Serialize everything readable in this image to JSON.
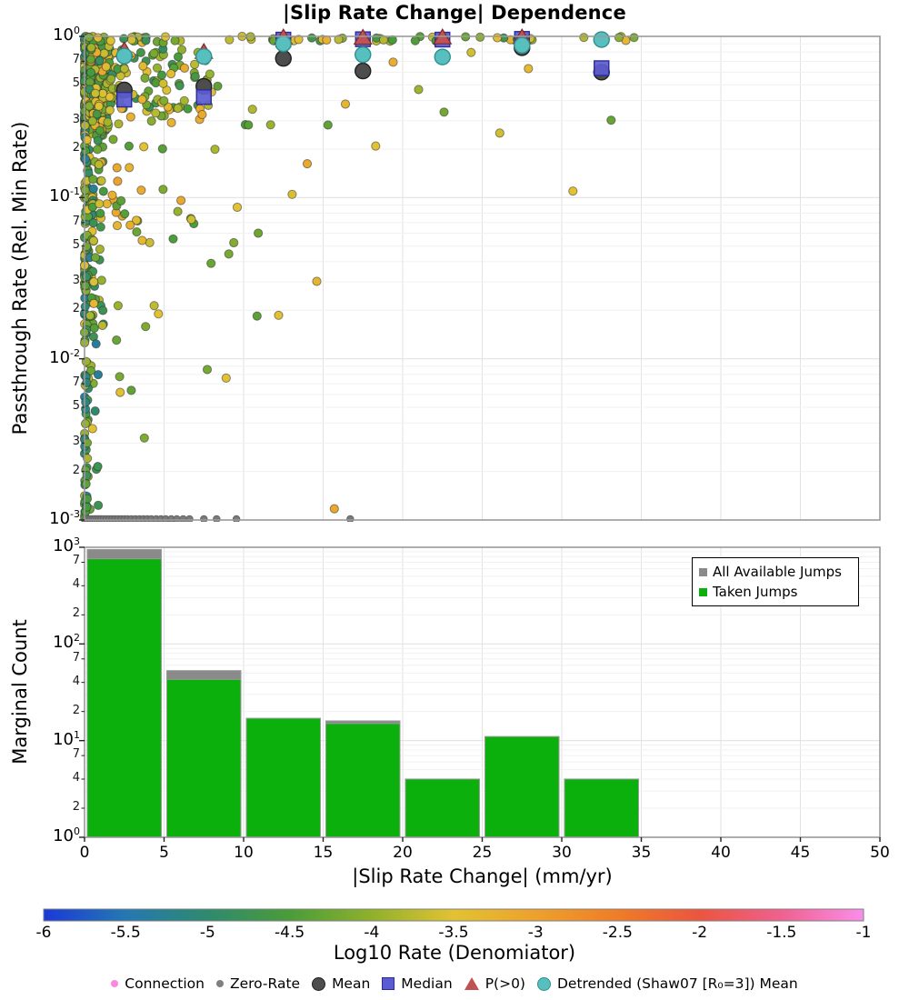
{
  "title": "|Slip Rate Change| Dependence",
  "scatter_plot": {
    "ylabel": "Passthrough Rate (Rel. Min Rate)",
    "y_major_exponents": [
      0,
      -1,
      -2,
      -3
    ],
    "y_minor_labels": [
      7,
      5,
      3,
      2
    ],
    "ylim_log": [
      -3,
      0
    ],
    "xlim": [
      0,
      50
    ]
  },
  "hist_plot": {
    "ylabel": "Marginal Count",
    "xlabel": "|Slip Rate Change| (mm/yr)",
    "y_major_exponents": [
      3,
      2,
      1,
      0
    ],
    "y_minor_labels": [
      7,
      4,
      2
    ],
    "ylim_log": [
      0,
      3
    ],
    "x_ticks": [
      0,
      5,
      10,
      15,
      20,
      25,
      30,
      35,
      40,
      45,
      50
    ],
    "legend": {
      "items": [
        {
          "label": "All Available Jumps",
          "color": "#8a8a8a"
        },
        {
          "label": "Taken Jumps",
          "color": "#0cb00c"
        }
      ]
    }
  },
  "colorbar": {
    "label": "Log10 Rate (Denomiator)",
    "ticks": [
      "-6",
      "-5.5",
      "-5",
      "-4.5",
      "-4",
      "-3.5",
      "-3",
      "-2.5",
      "-2",
      "-1.5",
      "-1"
    ],
    "range": [
      -6,
      -1
    ],
    "stops": [
      {
        "v": -6.0,
        "c": "#1b39d8"
      },
      {
        "v": -5.5,
        "c": "#2478b2"
      },
      {
        "v": -5.0,
        "c": "#2e8a6e"
      },
      {
        "v": -4.5,
        "c": "#4a9c39"
      },
      {
        "v": -4.0,
        "c": "#8fb12c"
      },
      {
        "v": -3.5,
        "c": "#e2c232"
      },
      {
        "v": -3.0,
        "c": "#eda12d"
      },
      {
        "v": -2.5,
        "c": "#ee7d27"
      },
      {
        "v": -2.0,
        "c": "#eb5540"
      },
      {
        "v": -1.5,
        "c": "#ef618f"
      },
      {
        "v": -1.0,
        "c": "#fa8ee9"
      }
    ]
  },
  "bottom_legend": {
    "items": [
      {
        "label": "Connection",
        "marker": "dot",
        "color": "#ff87dd",
        "edge": "#e06ec0"
      },
      {
        "label": "Zero-Rate",
        "marker": "dot",
        "color": "#7f7f7f",
        "edge": "#6a6a6a"
      },
      {
        "label": "Mean",
        "marker": "circle",
        "color": "#4d4d4d",
        "edge": "#1f1f1f"
      },
      {
        "label": "Median",
        "marker": "square",
        "color": "#5c5cd2",
        "edge": "#2b2b99"
      },
      {
        "label": "P(>0)",
        "marker": "triangle",
        "color": "#bf5252",
        "edge": "#7e2a2a"
      },
      {
        "label": "Detrended (Shaw07 [R₀=3]) Mean",
        "marker": "circle",
        "color": "#58bfbf",
        "edge": "#2e8f8f"
      }
    ]
  },
  "chart_data": [
    {
      "type": "scatter",
      "title": "|Slip Rate Change| Dependence",
      "xlabel": "|Slip Rate Change| (mm/yr)",
      "ylabel": "Passthrough Rate (Rel. Min Rate)",
      "x_range": [
        0,
        50
      ],
      "y_log_range": [
        -3,
        0
      ],
      "grid": true,
      "color_axis": {
        "label": "Log10 Rate (Denomiator)",
        "range": [
          -6,
          -1
        ]
      },
      "series": [
        {
          "name": "Mean",
          "marker": "circle",
          "color": "#4d4d4d",
          "edge": "#1f1f1f",
          "points": [
            [
              2.5,
              0.465
            ],
            [
              7.5,
              0.49
            ],
            [
              12.5,
              0.73
            ],
            [
              17.5,
              0.61
            ],
            [
              27.5,
              0.85
            ],
            [
              32.5,
              0.6
            ]
          ]
        },
        {
          "name": "Median",
          "marker": "square",
          "color": "#5c5cd2",
          "edge": "#2b2b99",
          "points": [
            [
              2.5,
              0.405
            ],
            [
              7.5,
              0.42
            ],
            [
              12.5,
              0.955
            ],
            [
              17.5,
              0.96
            ],
            [
              22.5,
              0.955
            ],
            [
              27.5,
              0.965
            ],
            [
              32.5,
              0.635
            ]
          ]
        },
        {
          "name": "P(>0)",
          "marker": "triangle",
          "color": "#bf5252",
          "edge": "#7e2a2a",
          "points": [
            [
              2.5,
              0.82
            ],
            [
              7.5,
              0.8
            ],
            [
              12.5,
              0.985
            ],
            [
              17.5,
              0.98
            ],
            [
              22.5,
              0.985
            ],
            [
              27.5,
              0.985
            ]
          ]
        },
        {
          "name": "Detrended (Shaw07 [R₀=3]) Mean",
          "marker": "circle",
          "color": "#58bfbf",
          "edge": "#2e8f8f",
          "points": [
            [
              2.5,
              0.755
            ],
            [
              7.5,
              0.75
            ],
            [
              12.5,
              0.9
            ],
            [
              17.5,
              0.77
            ],
            [
              22.5,
              0.745
            ],
            [
              27.5,
              0.88
            ],
            [
              32.5,
              0.955
            ]
          ]
        },
        {
          "name": "Zero-Rate",
          "marker": "dot",
          "color": "#7a7a7a",
          "y_log": -3,
          "xs": [
            0.08,
            0.22,
            0.36,
            0.5,
            0.64,
            0.78,
            0.92,
            1.06,
            1.2,
            1.38,
            1.56,
            1.74,
            1.92,
            2.1,
            2.3,
            2.5,
            2.7,
            2.95,
            3.2,
            3.45,
            3.7,
            3.95,
            4.2,
            4.5,
            4.8,
            5.1,
            5.45,
            5.8,
            6.2,
            6.6,
            7.5,
            8.3,
            9.55,
            16.7
          ]
        }
      ],
      "background_points": {
        "seed": 1337,
        "clusters": [
          {
            "n": 300,
            "x": [
              0,
              1.6
            ],
            "xbias": 2.3,
            "ylog": [
              -0.62,
              0.0
            ],
            "c": [
              -5.1,
              -3.3
            ]
          },
          {
            "n": 120,
            "x": [
              0,
              1.2
            ],
            "xbias": 2.2,
            "ylog": [
              -1.8,
              -0.6
            ],
            "c": [
              -5.3,
              -3.4
            ]
          },
          {
            "n": 60,
            "x": [
              0,
              0.9
            ],
            "xbias": 2.0,
            "ylog": [
              -3.0,
              -1.8
            ],
            "c": [
              -5.4,
              -3.6
            ]
          },
          {
            "n": 170,
            "x": [
              0.3,
              8.5
            ],
            "xbias": 1.9,
            "ylog": [
              -0.5,
              -0.02
            ],
            "c": [
              -4.9,
              -3.1
            ]
          },
          {
            "n": 65,
            "x": [
              0.5,
              14.5
            ],
            "xbias": 2.1,
            "ylog": [
              -1.3,
              -0.33
            ],
            "c": [
              -4.6,
              -3.0
            ]
          },
          {
            "n": 55,
            "x": [
              0.2,
              35
            ],
            "xbias": 1.4,
            "ylog": [
              -0.03,
              0.0
            ],
            "c": [
              -4.8,
              -3.2
            ]
          },
          {
            "n": 18,
            "x": [
              0.5,
              11
            ],
            "xbias": 1.7,
            "ylog": [
              -2.6,
              -1.25
            ],
            "c": [
              -4.5,
              -3.2
            ]
          }
        ],
        "extra_points": [
          [
            10.3,
            -0.55,
            -4.4
          ],
          [
            15.3,
            -0.55,
            -4.35
          ],
          [
            14.0,
            -0.79,
            -3.1
          ],
          [
            13.05,
            -0.98,
            -3.55
          ],
          [
            9.6,
            -1.06,
            -3.5
          ],
          [
            26.1,
            -0.6,
            -3.6
          ],
          [
            30.7,
            -0.96,
            -3.5
          ],
          [
            15.7,
            -2.93,
            -3.1
          ],
          [
            0.15,
            -2.92,
            -4.6
          ],
          [
            14.6,
            -1.52,
            -3.3
          ],
          [
            12.2,
            -1.73,
            -3.45
          ],
          [
            8.9,
            -2.12,
            -3.5
          ],
          [
            21.0,
            -0.33,
            -3.9
          ],
          [
            24.3,
            -0.1,
            -3.6
          ],
          [
            27.9,
            -0.2,
            -3.4
          ],
          [
            33.1,
            -0.52,
            -4.3
          ],
          [
            19.4,
            -0.16,
            -3.2
          ],
          [
            22.6,
            -0.47,
            -4.2
          ],
          [
            18.3,
            -0.68,
            -3.5
          ],
          [
            16.4,
            -0.42,
            -3.3
          ]
        ]
      }
    },
    {
      "type": "bar",
      "ylabel": "Marginal Count",
      "xlabel": "|Slip Rate Change| (mm/yr)",
      "y_log_range": [
        0,
        3
      ],
      "x_bins": [
        0,
        5,
        10,
        15,
        20,
        25,
        30,
        35
      ],
      "series": [
        {
          "name": "All Available Jumps",
          "color": "#8a8a8a",
          "values": [
            950,
            53,
            17,
            16,
            4,
            11,
            4
          ]
        },
        {
          "name": "Taken Jumps",
          "color": "#0cb00c",
          "values": [
            760,
            43,
            17,
            15,
            4,
            11,
            4
          ]
        }
      ],
      "legend_position": "top-right"
    }
  ]
}
